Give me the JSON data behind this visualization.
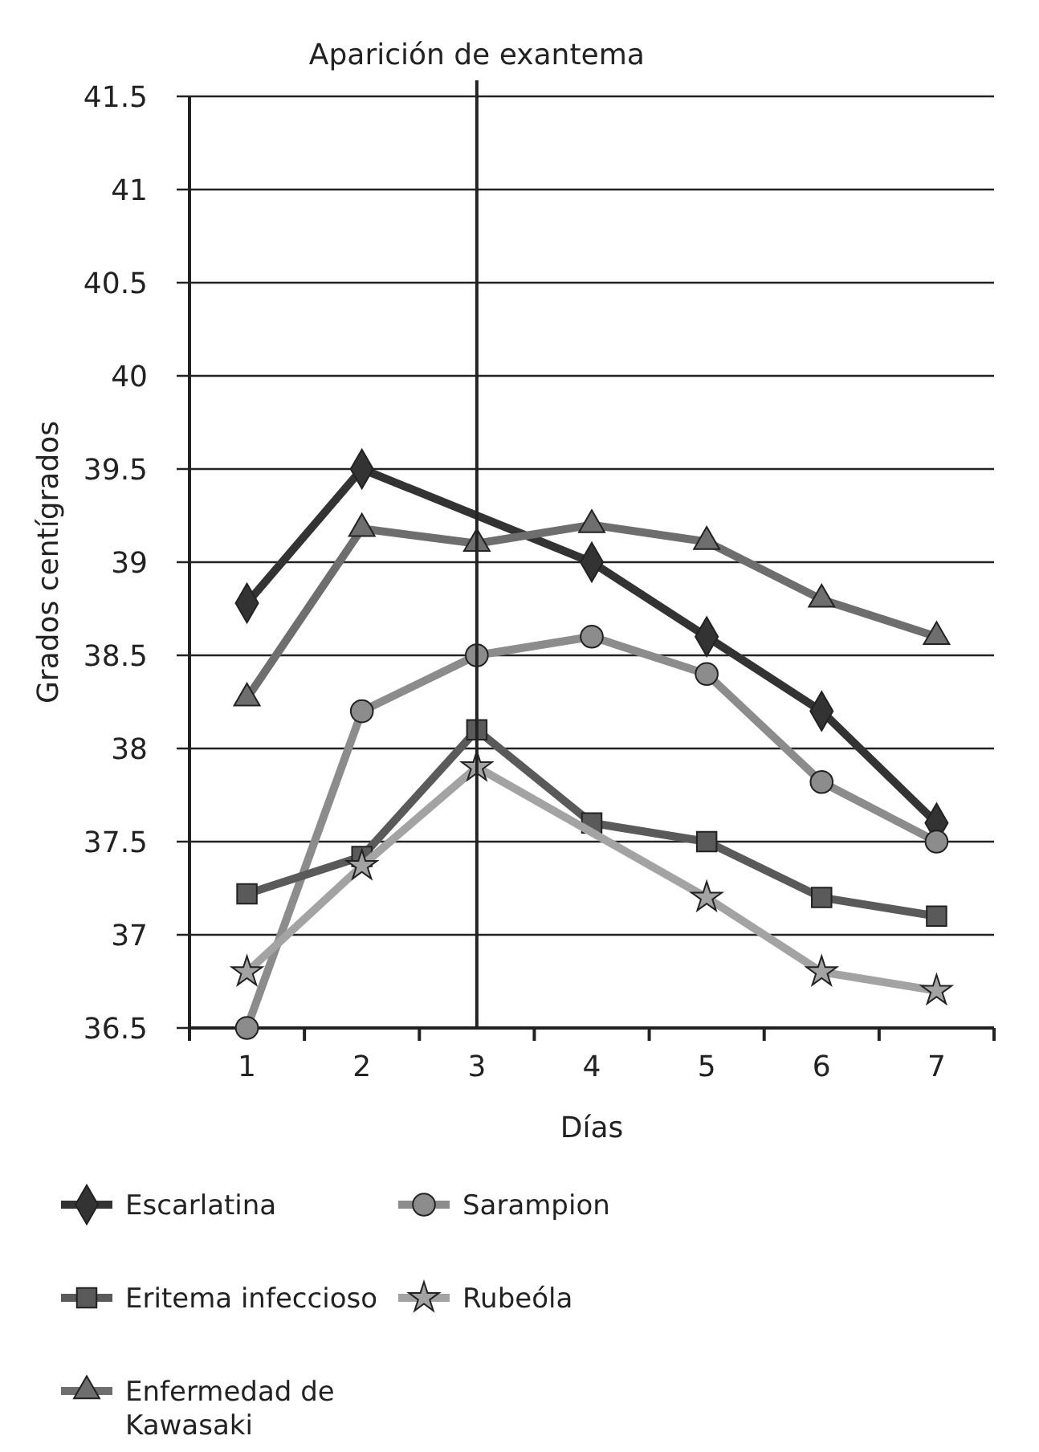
{
  "chart_data": {
    "type": "line",
    "ylabel": "Grados centígrados",
    "xlabel": "Días",
    "categories": [
      "1",
      "2",
      "3",
      "4",
      "5",
      "6",
      "7"
    ],
    "ylim": [
      36.5,
      41.5
    ],
    "yticks": [
      36.5,
      37,
      37.5,
      38,
      38.5,
      39,
      39.5,
      40,
      40.5,
      41,
      41.5
    ],
    "grid": "y",
    "legend": "bottom",
    "line_style": "solid",
    "ref_lines": [
      {
        "axis": "x",
        "value": "3",
        "label": "Aparición de exantema",
        "color": "#222222"
      }
    ],
    "series": [
      {
        "name": "Escarlatina",
        "color": "#333333",
        "marker": "diamond",
        "values": [
          38.78,
          39.5,
          null,
          39.0,
          38.6,
          38.2,
          37.6
        ]
      },
      {
        "name": "Sarampion",
        "color": "#8c8c8c",
        "marker": "circle",
        "values": [
          36.5,
          38.2,
          38.5,
          38.6,
          38.4,
          37.82,
          37.5
        ]
      },
      {
        "name": "Eritema infeccioso",
        "color": "#5a5a5a",
        "marker": "square",
        "values": [
          37.22,
          37.42,
          38.1,
          37.6,
          37.5,
          37.2,
          37.1
        ]
      },
      {
        "name": "Rubeóla",
        "color": "#a3a3a3",
        "marker": "star",
        "values": [
          36.8,
          37.37,
          37.9,
          null,
          37.2,
          36.8,
          36.7
        ]
      },
      {
        "name": "Enfermedad de Kawasaki",
        "color": "#6e6e6e",
        "marker": "triangle",
        "values": [
          38.27,
          39.18,
          39.1,
          39.2,
          39.11,
          38.8,
          38.6
        ]
      }
    ]
  }
}
